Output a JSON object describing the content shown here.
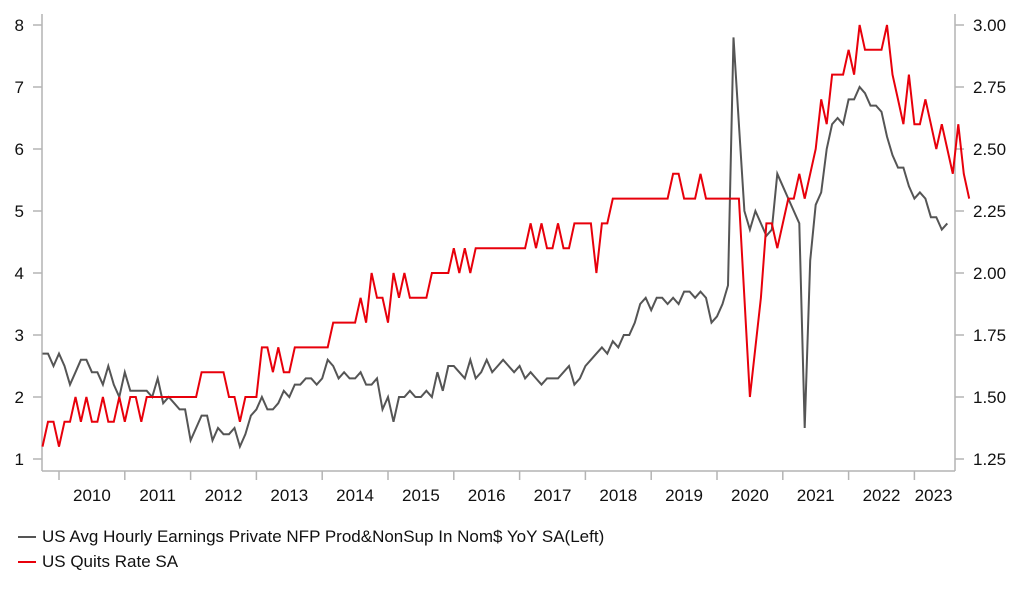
{
  "chart_data": {
    "type": "line",
    "title": "",
    "xlabel": "",
    "ylabel_left": "",
    "ylabel_right": "",
    "x_start": "2009-10",
    "x_frequency": "monthly",
    "x_tick_labels": [
      "2010",
      "2011",
      "2012",
      "2013",
      "2014",
      "2015",
      "2016",
      "2017",
      "2018",
      "2019",
      "2020",
      "2021",
      "2022",
      "2023"
    ],
    "left_axis": {
      "range": [
        1,
        8
      ],
      "ticks": [
        "1",
        "2",
        "3",
        "4",
        "5",
        "6",
        "7",
        "8"
      ]
    },
    "right_axis": {
      "range": [
        1.25,
        3.0
      ],
      "ticks": [
        "1.25",
        "1.50",
        "1.75",
        "2.00",
        "2.25",
        "2.50",
        "2.75",
        "3.00"
      ]
    },
    "grid": false,
    "legend_position": "bottom-left",
    "series": [
      {
        "name": "US Avg Hourly Earnings Private NFP Prod&NonSup In Nom$ YoY SA(Left)",
        "axis": "left",
        "color": "#555555",
        "values": [
          2.7,
          2.7,
          2.5,
          2.7,
          2.5,
          2.2,
          2.4,
          2.6,
          2.6,
          2.4,
          2.4,
          2.2,
          2.5,
          2.2,
          2.0,
          2.4,
          2.1,
          2.1,
          2.1,
          2.1,
          2.0,
          2.3,
          1.9,
          2.0,
          1.9,
          1.8,
          1.8,
          1.3,
          1.5,
          1.7,
          1.7,
          1.3,
          1.5,
          1.4,
          1.4,
          1.5,
          1.2,
          1.4,
          1.7,
          1.8,
          2.0,
          1.8,
          1.8,
          1.9,
          2.1,
          2.0,
          2.2,
          2.2,
          2.3,
          2.3,
          2.2,
          2.3,
          2.6,
          2.5,
          2.3,
          2.4,
          2.3,
          2.3,
          2.4,
          2.2,
          2.2,
          2.3,
          1.8,
          2.0,
          1.6,
          2.0,
          2.0,
          2.1,
          2.0,
          2.0,
          2.1,
          2.0,
          2.4,
          2.1,
          2.5,
          2.5,
          2.4,
          2.3,
          2.6,
          2.3,
          2.4,
          2.6,
          2.4,
          2.5,
          2.6,
          2.5,
          2.4,
          2.5,
          2.3,
          2.4,
          2.3,
          2.2,
          2.3,
          2.3,
          2.3,
          2.4,
          2.5,
          2.2,
          2.3,
          2.5,
          2.6,
          2.7,
          2.8,
          2.7,
          2.9,
          2.8,
          3.0,
          3.0,
          3.2,
          3.5,
          3.6,
          3.4,
          3.6,
          3.6,
          3.5,
          3.6,
          3.5,
          3.7,
          3.7,
          3.6,
          3.7,
          3.6,
          3.2,
          3.3,
          3.5,
          3.8,
          7.8,
          6.4,
          5.0,
          4.7,
          5.0,
          4.8,
          4.6,
          4.7,
          5.6,
          5.4,
          5.2,
          5.0,
          4.8,
          1.5,
          4.2,
          5.1,
          5.3,
          6.0,
          6.4,
          6.5,
          6.4,
          6.8,
          6.8,
          7.0,
          6.9,
          6.7,
          6.7,
          6.6,
          6.2,
          5.9,
          5.7,
          5.7,
          5.4,
          5.2,
          5.3,
          5.2,
          4.9,
          4.9,
          4.7,
          4.8
        ]
      },
      {
        "name": "US Quits Rate SA",
        "axis": "right",
        "color": "#e8000b",
        "values": [
          1.3,
          1.4,
          1.4,
          1.3,
          1.4,
          1.4,
          1.5,
          1.4,
          1.5,
          1.4,
          1.4,
          1.5,
          1.4,
          1.4,
          1.5,
          1.4,
          1.5,
          1.5,
          1.4,
          1.5,
          1.5,
          1.5,
          1.5,
          1.5,
          1.5,
          1.5,
          1.5,
          1.5,
          1.5,
          1.6,
          1.6,
          1.6,
          1.6,
          1.6,
          1.5,
          1.5,
          1.4,
          1.5,
          1.5,
          1.5,
          1.7,
          1.7,
          1.6,
          1.7,
          1.6,
          1.6,
          1.7,
          1.7,
          1.7,
          1.7,
          1.7,
          1.7,
          1.7,
          1.8,
          1.8,
          1.8,
          1.8,
          1.8,
          1.9,
          1.8,
          2.0,
          1.9,
          1.9,
          1.8,
          2.0,
          1.9,
          2.0,
          1.9,
          1.9,
          1.9,
          1.9,
          2.0,
          2.0,
          2.0,
          2.0,
          2.1,
          2.0,
          2.1,
          2.0,
          2.1,
          2.1,
          2.1,
          2.1,
          2.1,
          2.1,
          2.1,
          2.1,
          2.1,
          2.1,
          2.2,
          2.1,
          2.2,
          2.1,
          2.1,
          2.2,
          2.1,
          2.1,
          2.2,
          2.2,
          2.2,
          2.2,
          2.0,
          2.2,
          2.2,
          2.3,
          2.3,
          2.3,
          2.3,
          2.3,
          2.3,
          2.3,
          2.3,
          2.3,
          2.3,
          2.3,
          2.4,
          2.4,
          2.3,
          2.3,
          2.3,
          2.4,
          2.3,
          2.3,
          2.3,
          2.3,
          2.3,
          2.3,
          2.3,
          1.9,
          1.5,
          1.7,
          1.9,
          2.2,
          2.2,
          2.1,
          2.2,
          2.3,
          2.3,
          2.4,
          2.3,
          2.4,
          2.5,
          2.7,
          2.6,
          2.8,
          2.8,
          2.8,
          2.9,
          2.8,
          3.0,
          2.9,
          2.9,
          2.9,
          2.9,
          3.0,
          2.8,
          2.7,
          2.6,
          2.8,
          2.6,
          2.6,
          2.7,
          2.6,
          2.5,
          2.6,
          2.5,
          2.4,
          2.6,
          2.4,
          2.3
        ]
      }
    ]
  },
  "legend": {
    "items": [
      {
        "label": "US Avg Hourly Earnings Private NFP Prod&NonSup In Nom$ YoY SA(Left)",
        "color": "#555555"
      },
      {
        "label": "US Quits Rate SA",
        "color": "#e8000b"
      }
    ]
  }
}
